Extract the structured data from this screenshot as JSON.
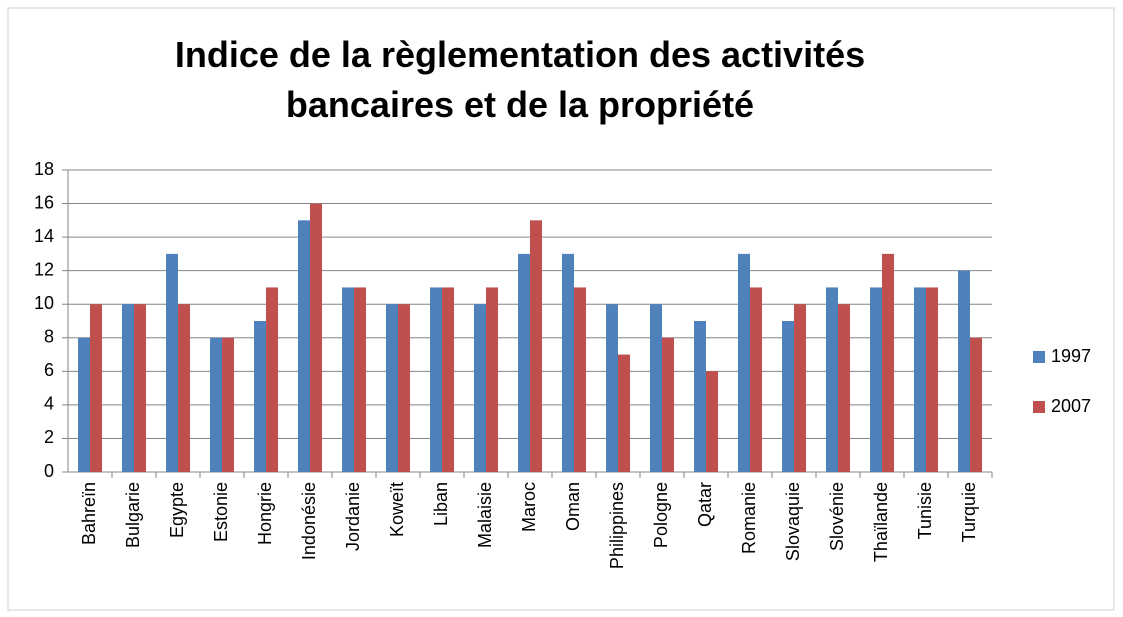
{
  "chart_data": {
    "type": "bar",
    "title": "Indice de la règlementation des activités bancaires et de la propriété",
    "categories": [
      "Bahreïn",
      "Bulgarie",
      "Egypte",
      "Estonie",
      "Hongrie",
      "Indonésie",
      "Jordanie",
      "Koweït",
      "Liban",
      "Malaisie",
      "Maroc",
      "Oman",
      "Philippines",
      "Pologne",
      "Qatar",
      "Romanie",
      "Slovaquie",
      "Slovénie",
      "Thaïlande",
      "Tunisie",
      "Turquie"
    ],
    "series": [
      {
        "name": "1997",
        "color": "#4f81bd",
        "values": [
          8,
          10,
          13,
          8,
          9,
          15,
          11,
          10,
          11,
          10,
          13,
          13,
          10,
          10,
          9,
          13,
          9,
          11,
          11,
          11,
          12
        ]
      },
      {
        "name": "2007",
        "color": "#c0504d",
        "values": [
          10,
          10,
          10,
          8,
          11,
          16,
          11,
          10,
          11,
          11,
          15,
          11,
          7,
          8,
          6,
          11,
          10,
          10,
          13,
          11,
          8
        ]
      }
    ],
    "ylim": [
      0,
      18
    ],
    "yticks": [
      0,
      2,
      4,
      6,
      8,
      10,
      12,
      14,
      16,
      18
    ],
    "grid": true,
    "legend": "right"
  }
}
